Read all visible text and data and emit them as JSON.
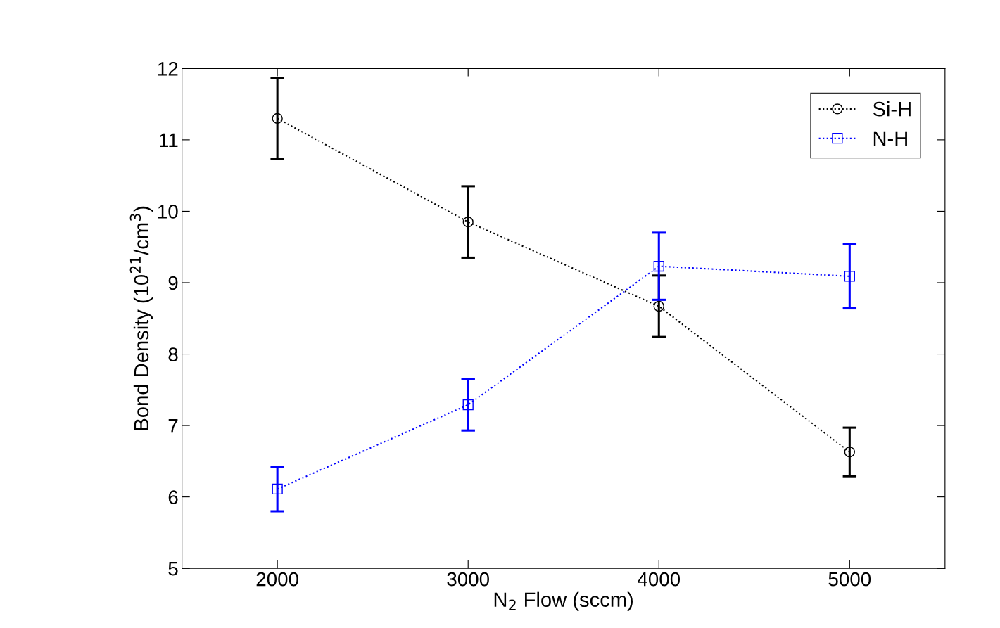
{
  "chart_data": {
    "type": "line",
    "xlabel": "N$_{2}$ Flow (sccm)",
    "ylabel": "Bond Density (10$^{21}$/cm$^{3}$)",
    "x": [
      2000,
      3000,
      4000,
      5000
    ],
    "series": [
      {
        "name": "Si-H",
        "color": "#000000",
        "marker": "circle",
        "values": [
          11.3,
          9.85,
          8.67,
          6.63
        ],
        "errors": [
          0.57,
          0.5,
          0.43,
          0.34
        ]
      },
      {
        "name": "N-H",
        "color": "#0000ff",
        "marker": "square",
        "values": [
          6.11,
          7.29,
          9.23,
          9.09
        ],
        "errors": [
          0.31,
          0.36,
          0.47,
          0.45
        ]
      }
    ],
    "xlim": [
      1500,
      5500
    ],
    "xticks": [
      2000,
      3000,
      4000,
      5000
    ],
    "ylim": [
      5,
      12
    ],
    "yticks": [
      5,
      6,
      7,
      8,
      9,
      10,
      11,
      12
    ],
    "line_style": "dotted",
    "grid": false,
    "legend": "top right"
  }
}
